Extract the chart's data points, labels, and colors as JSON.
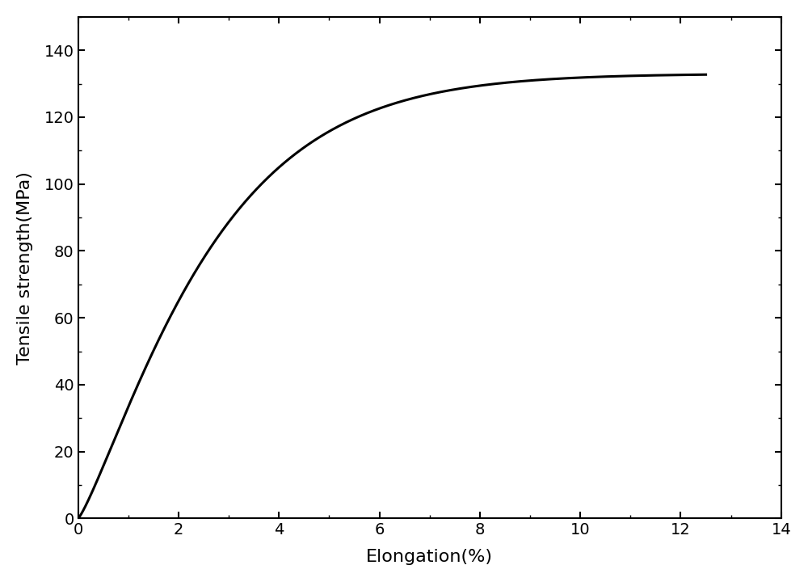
{
  "xlabel": "Elongation(%)",
  "ylabel": "Tensile strength(MPa)",
  "xlim": [
    0,
    14
  ],
  "ylim": [
    0,
    150
  ],
  "xticks": [
    0,
    2,
    4,
    6,
    8,
    10,
    12,
    14
  ],
  "yticks": [
    0,
    20,
    40,
    60,
    80,
    100,
    120,
    140
  ],
  "line_color": "#000000",
  "line_width": 2.2,
  "background_color": "#ffffff",
  "x_end": 12.5,
  "log_a": 42.0,
  "log_b": 12.0,
  "xlabel_fontsize": 16,
  "ylabel_fontsize": 16,
  "tick_labelsize": 14
}
